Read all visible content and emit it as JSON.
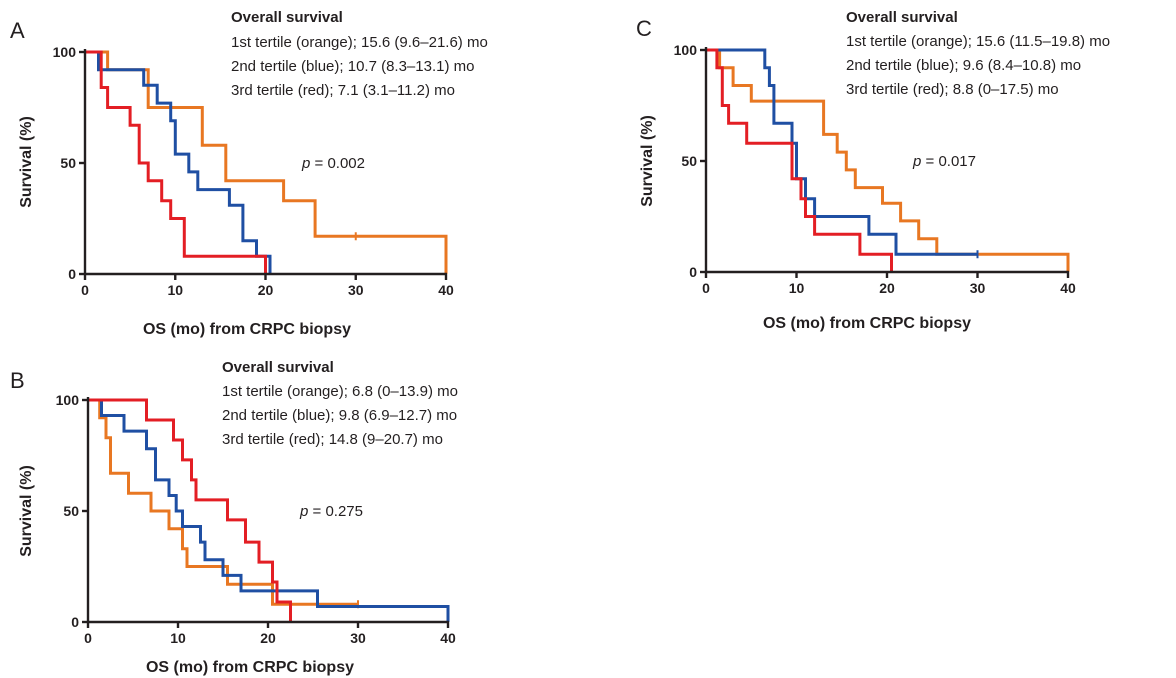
{
  "chart_data": [
    {
      "panel": "A",
      "type": "line",
      "xlabel": "OS (mo) from CRPC biopsy",
      "ylabel": "Survival (%)",
      "xlim": [
        0,
        40
      ],
      "ylim": [
        0,
        100
      ],
      "xticks": [
        0,
        10,
        20,
        30,
        40
      ],
      "yticks": [
        0,
        50,
        100
      ],
      "legend_title": "Overall survival",
      "legend_lines": [
        "1st tertile (orange); 15.6 (9.6–21.6) mo",
        "2nd tertile (blue); 10.7 (8.3–13.1) mo",
        "3rd tertile (red); 7.1 (3.1–11.2) mo"
      ],
      "p_label": "p",
      "p_value": " = 0.002",
      "series": [
        {
          "color": "#e87722",
          "points": [
            [
              0,
              100
            ],
            [
              2.5,
              100
            ],
            [
              2.5,
              92
            ],
            [
              7,
              92
            ],
            [
              7,
              75
            ],
            [
              13,
              75
            ],
            [
              13,
              58
            ],
            [
              15.6,
              58
            ],
            [
              15.6,
              42
            ],
            [
              22,
              42
            ],
            [
              22,
              33
            ],
            [
              25.5,
              33
            ],
            [
              25.5,
              17
            ],
            [
              40,
              17
            ],
            [
              40,
              0
            ]
          ],
          "censor": [
            [
              30,
              17
            ]
          ]
        },
        {
          "color": "#1f4fa3",
          "points": [
            [
              0,
              100
            ],
            [
              1.5,
              100
            ],
            [
              1.5,
              92
            ],
            [
              6.5,
              92
            ],
            [
              6.5,
              85
            ],
            [
              8,
              85
            ],
            [
              8,
              77
            ],
            [
              9.5,
              77
            ],
            [
              9.5,
              69
            ],
            [
              10,
              69
            ],
            [
              10,
              54
            ],
            [
              11.5,
              54
            ],
            [
              11.5,
              46
            ],
            [
              12.5,
              46
            ],
            [
              12.5,
              38
            ],
            [
              16,
              38
            ],
            [
              16,
              31
            ],
            [
              17.5,
              31
            ],
            [
              17.5,
              15
            ],
            [
              19,
              15
            ],
            [
              19,
              8
            ],
            [
              20.5,
              8
            ],
            [
              20.5,
              0
            ]
          ],
          "censor": []
        },
        {
          "color": "#e31e24",
          "points": [
            [
              0,
              100
            ],
            [
              1.8,
              100
            ],
            [
              1.8,
              84
            ],
            [
              2.5,
              84
            ],
            [
              2.5,
              75
            ],
            [
              5,
              75
            ],
            [
              5,
              67
            ],
            [
              6,
              67
            ],
            [
              6,
              50
            ],
            [
              7,
              50
            ],
            [
              7,
              42
            ],
            [
              8.5,
              42
            ],
            [
              8.5,
              33
            ],
            [
              9.5,
              33
            ],
            [
              9.5,
              25
            ],
            [
              11,
              25
            ],
            [
              11,
              8
            ],
            [
              20,
              8
            ],
            [
              20,
              0
            ]
          ],
          "censor": []
        }
      ]
    },
    {
      "panel": "B",
      "type": "line",
      "xlabel": "OS (mo) from CRPC biopsy",
      "ylabel": "Survival (%)",
      "xlim": [
        0,
        40
      ],
      "ylim": [
        0,
        100
      ],
      "xticks": [
        0,
        10,
        20,
        30,
        40
      ],
      "yticks": [
        0,
        50,
        100
      ],
      "legend_title": "Overall survival",
      "legend_lines": [
        "1st tertile (orange); 6.8 (0–13.9) mo",
        "2nd tertile (blue); 9.8 (6.9–12.7) mo",
        "3rd tertile (red); 14.8 (9–20.7) mo"
      ],
      "p_label": "p",
      "p_value": " = 0.275",
      "series": [
        {
          "color": "#e87722",
          "points": [
            [
              0,
              100
            ],
            [
              1.3,
              100
            ],
            [
              1.3,
              92
            ],
            [
              2,
              92
            ],
            [
              2,
              83
            ],
            [
              2.5,
              83
            ],
            [
              2.5,
              67
            ],
            [
              4.5,
              67
            ],
            [
              4.5,
              58
            ],
            [
              7,
              58
            ],
            [
              7,
              50
            ],
            [
              9,
              50
            ],
            [
              9,
              42
            ],
            [
              10.5,
              42
            ],
            [
              10.5,
              33
            ],
            [
              11,
              33
            ],
            [
              11,
              25
            ],
            [
              15.5,
              25
            ],
            [
              15.5,
              17
            ],
            [
              20.5,
              17
            ],
            [
              20.5,
              8
            ],
            [
              30,
              8
            ]
          ],
          "censor": [
            [
              30,
              8
            ]
          ]
        },
        {
          "color": "#1f4fa3",
          "points": [
            [
              0,
              100
            ],
            [
              1.5,
              100
            ],
            [
              1.5,
              93
            ],
            [
              4,
              93
            ],
            [
              4,
              86
            ],
            [
              6.5,
              86
            ],
            [
              6.5,
              78
            ],
            [
              7.5,
              78
            ],
            [
              7.5,
              64
            ],
            [
              9,
              64
            ],
            [
              9,
              57
            ],
            [
              9.8,
              57
            ],
            [
              9.8,
              50
            ],
            [
              10.5,
              50
            ],
            [
              10.5,
              43
            ],
            [
              12.5,
              43
            ],
            [
              12.5,
              36
            ],
            [
              13,
              36
            ],
            [
              13,
              28
            ],
            [
              15,
              28
            ],
            [
              15,
              21
            ],
            [
              17,
              21
            ],
            [
              17,
              14
            ],
            [
              25.5,
              14
            ],
            [
              25.5,
              7
            ],
            [
              40,
              7
            ],
            [
              40,
              0
            ]
          ],
          "censor": []
        },
        {
          "color": "#e31e24",
          "points": [
            [
              0,
              100
            ],
            [
              6.5,
              100
            ],
            [
              6.5,
              91
            ],
            [
              9.5,
              91
            ],
            [
              9.5,
              82
            ],
            [
              10.5,
              82
            ],
            [
              10.5,
              73
            ],
            [
              11.5,
              73
            ],
            [
              11.5,
              64
            ],
            [
              12,
              64
            ],
            [
              12,
              55
            ],
            [
              15.5,
              55
            ],
            [
              15.5,
              46
            ],
            [
              17.5,
              46
            ],
            [
              17.5,
              36
            ],
            [
              19,
              36
            ],
            [
              19,
              27
            ],
            [
              20.5,
              27
            ],
            [
              20.5,
              18
            ],
            [
              21,
              18
            ],
            [
              21,
              9
            ],
            [
              22.5,
              9
            ],
            [
              22.5,
              0
            ]
          ],
          "censor": []
        }
      ]
    },
    {
      "panel": "C",
      "type": "line",
      "xlabel": "OS (mo) from CRPC biopsy",
      "ylabel": "Survival (%)",
      "xlim": [
        0,
        40
      ],
      "ylim": [
        0,
        100
      ],
      "xticks": [
        0,
        10,
        20,
        30,
        40
      ],
      "yticks": [
        0,
        50,
        100
      ],
      "legend_title": "Overall survival",
      "legend_lines": [
        "1st tertile (orange); 15.6 (11.5–19.8) mo",
        "2nd tertile (blue); 9.6 (8.4–10.8) mo",
        "3rd tertile (red); 8.8 (0–17.5) mo"
      ],
      "p_label": "p",
      "p_value": " = 0.017",
      "series": [
        {
          "color": "#e87722",
          "points": [
            [
              0,
              100
            ],
            [
              1.5,
              100
            ],
            [
              1.5,
              92
            ],
            [
              3,
              92
            ],
            [
              3,
              84
            ],
            [
              5,
              84
            ],
            [
              5,
              77
            ],
            [
              13,
              77
            ],
            [
              13,
              62
            ],
            [
              14.5,
              62
            ],
            [
              14.5,
              54
            ],
            [
              15.5,
              54
            ],
            [
              15.5,
              46
            ],
            [
              16.5,
              46
            ],
            [
              16.5,
              38
            ],
            [
              19.5,
              38
            ],
            [
              19.5,
              31
            ],
            [
              21.5,
              31
            ],
            [
              21.5,
              23
            ],
            [
              23.5,
              23
            ],
            [
              23.5,
              15
            ],
            [
              25.5,
              15
            ],
            [
              25.5,
              8
            ],
            [
              40,
              8
            ],
            [
              40,
              0
            ]
          ],
          "censor": []
        },
        {
          "color": "#1f4fa3",
          "points": [
            [
              0,
              100
            ],
            [
              6.5,
              100
            ],
            [
              6.5,
              92
            ],
            [
              7,
              92
            ],
            [
              7,
              84
            ],
            [
              7.5,
              84
            ],
            [
              7.5,
              67
            ],
            [
              9.5,
              67
            ],
            [
              9.5,
              58
            ],
            [
              10,
              58
            ],
            [
              10,
              42
            ],
            [
              11,
              42
            ],
            [
              11,
              33
            ],
            [
              12,
              33
            ],
            [
              12,
              25
            ],
            [
              18,
              25
            ],
            [
              18,
              17
            ],
            [
              21,
              17
            ],
            [
              21,
              8
            ],
            [
              30,
              8
            ]
          ],
          "censor": [
            [
              30,
              8
            ]
          ]
        },
        {
          "color": "#e31e24",
          "points": [
            [
              0,
              100
            ],
            [
              1.2,
              100
            ],
            [
              1.2,
              92
            ],
            [
              1.8,
              92
            ],
            [
              1.8,
              75
            ],
            [
              2.5,
              75
            ],
            [
              2.5,
              67
            ],
            [
              4.5,
              67
            ],
            [
              4.5,
              58
            ],
            [
              9.5,
              58
            ],
            [
              9.5,
              42
            ],
            [
              10.5,
              42
            ],
            [
              10.5,
              33
            ],
            [
              11,
              33
            ],
            [
              11,
              25
            ],
            [
              12,
              25
            ],
            [
              12,
              17
            ],
            [
              17,
              17
            ],
            [
              17,
              8
            ],
            [
              20.5,
              8
            ],
            [
              20.5,
              0
            ]
          ],
          "censor": []
        }
      ]
    }
  ]
}
